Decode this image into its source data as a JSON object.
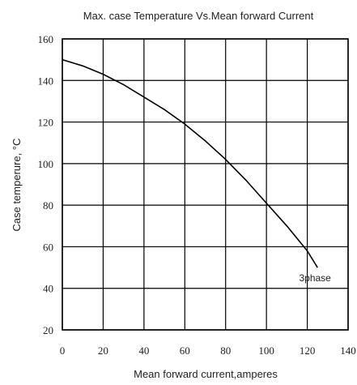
{
  "chart_data": {
    "type": "line",
    "title": "Max. case Temperature Vs.Mean forward Current",
    "xlabel": "Mean forward current,amperes",
    "ylabel": "Case temperure, °C",
    "xlim": [
      0,
      140
    ],
    "ylim": [
      20,
      160
    ],
    "xticks": [
      0,
      20,
      40,
      60,
      80,
      100,
      120,
      140
    ],
    "yticks": [
      20,
      40,
      60,
      80,
      100,
      120,
      140,
      160
    ],
    "grid": true,
    "series": [
      {
        "name": "3phase",
        "x": [
          0,
          10,
          20,
          30,
          40,
          50,
          60,
          70,
          80,
          90,
          100,
          110,
          120,
          125
        ],
        "y": [
          150,
          147,
          143,
          138,
          132,
          126,
          119,
          111,
          102,
          92,
          81,
          70,
          58,
          50
        ]
      }
    ],
    "annotations": [
      {
        "text": "3phase",
        "x": 116,
        "y": 45
      }
    ]
  }
}
